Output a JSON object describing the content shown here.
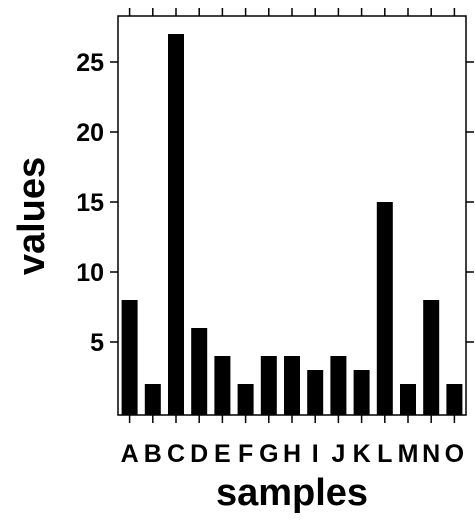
{
  "chart_data": {
    "type": "bar",
    "title": "",
    "xlabel": "samples",
    "ylabel": "values",
    "categories": [
      "A",
      "B",
      "C",
      "D",
      "E",
      "F",
      "G",
      "H",
      "I",
      "J",
      "K",
      "L",
      "M",
      "N",
      "O"
    ],
    "values": [
      8,
      2,
      27,
      6,
      4,
      2,
      4,
      4,
      3,
      4,
      3,
      15,
      2,
      8,
      2
    ],
    "ylim": [
      0,
      28.8
    ],
    "yticks": [
      5,
      10,
      15,
      20,
      25
    ],
    "grid": false,
    "legend": "none",
    "bar_color": "#000000"
  }
}
